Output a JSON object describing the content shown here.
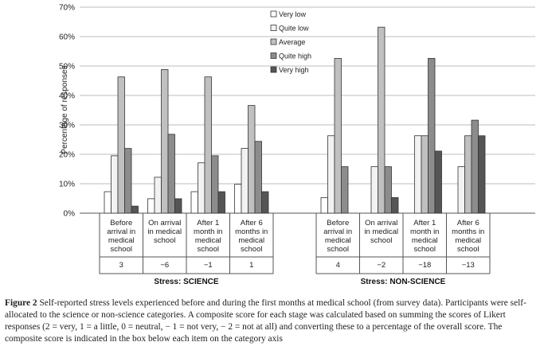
{
  "chart_data": {
    "type": "bar",
    "ylabel": "Percentage of responses",
    "ylim": [
      0,
      70
    ],
    "yticks": [
      "0%",
      "10%",
      "20%",
      "30%",
      "40%",
      "50%",
      "60%",
      "70%"
    ],
    "grid": true,
    "legend_position": "top-center",
    "series_names": [
      "Very low",
      "Quite low",
      "Average",
      "Quite high",
      "Very high"
    ],
    "series_colors": [
      "#ffffff",
      "#f2f2f2",
      "#c0c0c0",
      "#8c8c8c",
      "#555555"
    ],
    "groups": [
      {
        "title": "Stress: SCIENCE",
        "categories": [
          {
            "label": [
              "Before",
              "arrival in",
              "medical",
              "school"
            ],
            "score": "3",
            "values": [
              7.3,
              19.5,
              46.3,
              22.0,
              2.4
            ]
          },
          {
            "label": [
              "On arrival",
              "in medical",
              "school"
            ],
            "score": "−6",
            "values": [
              4.9,
              12.2,
              48.8,
              26.8,
              4.9
            ]
          },
          {
            "label": [
              "After 1",
              "month in",
              "medical",
              "school"
            ],
            "score": "−1",
            "values": [
              7.3,
              17.1,
              46.3,
              19.5,
              7.3
            ]
          },
          {
            "label": [
              "After 6",
              "months in",
              "medical",
              "school"
            ],
            "score": "1",
            "values": [
              9.8,
              22.0,
              36.6,
              24.4,
              7.3
            ]
          }
        ]
      },
      {
        "title": "Stress: NON-SCIENCE",
        "categories": [
          {
            "label": [
              "Before",
              "arrival in",
              "medical",
              "school"
            ],
            "score": "4",
            "values": [
              5.3,
              26.3,
              52.6,
              15.8,
              0
            ]
          },
          {
            "label": [
              "On arrival",
              "in medical",
              "school"
            ],
            "score": "−2",
            "values": [
              0,
              15.8,
              63.2,
              15.8,
              5.3
            ]
          },
          {
            "label": [
              "After 1",
              "month in",
              "medical",
              "school"
            ],
            "score": "−18",
            "values": [
              0,
              26.3,
              26.3,
              52.6,
              21.1
            ]
          },
          {
            "label": [
              "After 6",
              "months in",
              "medical",
              "school"
            ],
            "score": "−13",
            "values": [
              0,
              15.8,
              26.3,
              31.6,
              26.3
            ]
          }
        ]
      }
    ]
  },
  "caption": {
    "label": "Figure 2",
    "text": "Self-reported stress levels experienced before and during the first months at medical school (from survey data). Participants were self-allocated to the science or non-science categories. A composite score for each stage was calculated based on summing the scores of Likert responses (2 = very, 1 = a little, 0 = neutral, − 1 = not very, − 2 = not at all) and converting these to a percentage of the overall score. The composite score is indicated in the box below each item on the category axis"
  }
}
